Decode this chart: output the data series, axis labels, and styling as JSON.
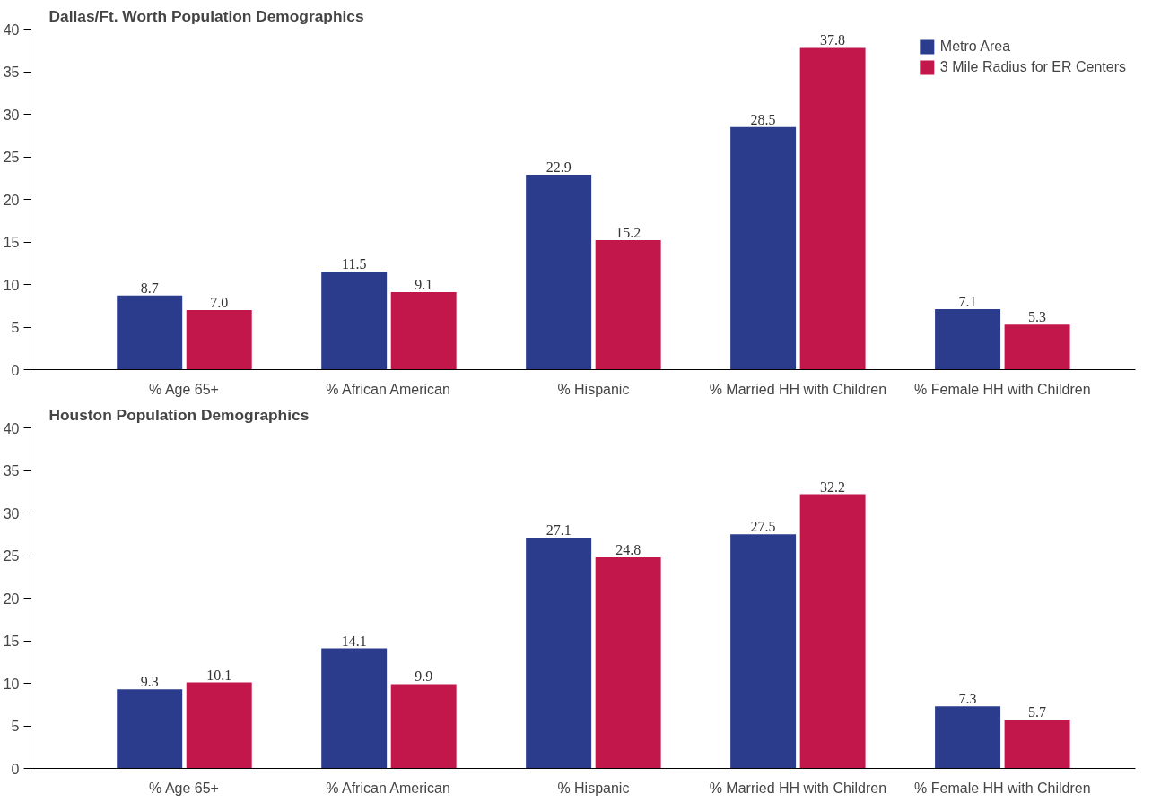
{
  "chart_data": [
    {
      "type": "bar",
      "title": "Dallas/Ft. Worth Population Demographics",
      "categories": [
        "% Age 65+",
        "% African American",
        "% Hispanic",
        "% Married HH with Children",
        "% Female HH with Children"
      ],
      "series": [
        {
          "name": "Metro Area",
          "color": "#2b3c8c",
          "values": [
            8.7,
            11.5,
            22.9,
            28.5,
            7.1
          ]
        },
        {
          "name": "3 Mile Radius for ER Centers",
          "color": "#c2174a",
          "values": [
            7.0,
            9.1,
            15.2,
            37.8,
            5.3
          ],
          "value_labels": [
            "7.0",
            "9.1",
            "15.2",
            "37.8",
            "5.3"
          ]
        }
      ],
      "ylim": [
        0,
        40
      ],
      "yticks": [
        0,
        5,
        10,
        15,
        20,
        25,
        30,
        35,
        40
      ],
      "data_labels": true,
      "legend": "top right",
      "grid": false
    },
    {
      "type": "bar",
      "title": "Houston Population Demographics",
      "categories": [
        "% Age 65+",
        "% African American",
        "% Hispanic",
        "% Married HH with Children",
        "% Female HH with Children"
      ],
      "series": [
        {
          "color": "#2b3c8c",
          "values": [
            9.3,
            14.1,
            27.1,
            27.5,
            7.3
          ]
        },
        {
          "color": "#c2174a",
          "values": [
            10.1,
            9.9,
            24.8,
            32.2,
            5.7
          ]
        }
      ],
      "ylim": [
        0,
        40
      ],
      "yticks": [
        0,
        5,
        10,
        15,
        20,
        25,
        30,
        35,
        40
      ],
      "data_labels": true,
      "grid": false
    }
  ]
}
